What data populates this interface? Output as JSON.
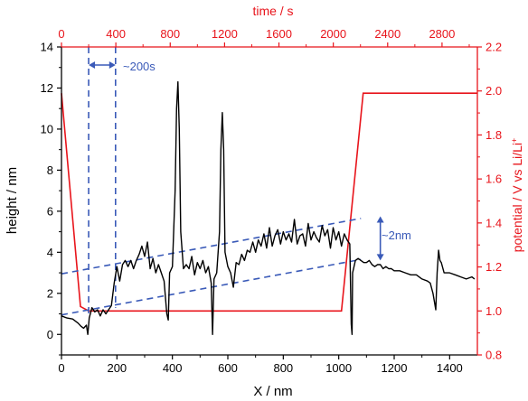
{
  "colors": {
    "height": "#000000",
    "potential": "#e8141b",
    "annotation": "#3a5ab8"
  },
  "chart_data": {
    "type": "line",
    "xlabel": "X / nm",
    "ylabel": "height / nm",
    "x2label": "time / s",
    "y2label": "potential / V vs Li/Li",
    "y2label_sup": "+",
    "xlim": [
      0,
      1500
    ],
    "ylim": [
      -1,
      14
    ],
    "x2lim": [
      0,
      3060
    ],
    "y2lim": [
      0.8,
      2.2
    ],
    "x_ticks": [
      0,
      200,
      400,
      600,
      800,
      1000,
      1200,
      1400
    ],
    "y_ticks": [
      0,
      2,
      4,
      6,
      8,
      10,
      12,
      14
    ],
    "x2_ticks": [
      0,
      400,
      800,
      1200,
      1600,
      2000,
      2400,
      2800
    ],
    "y2_ticks": [
      0.8,
      1.0,
      1.2,
      1.4,
      1.6,
      1.8,
      2.0,
      2.2
    ],
    "grid": false,
    "series": [
      {
        "axis": "left-bottom",
        "points": [
          [
            0,
            0.9
          ],
          [
            20,
            0.8
          ],
          [
            40,
            0.75
          ],
          [
            60,
            0.55
          ],
          [
            70,
            0.4
          ],
          [
            80,
            0.3
          ],
          [
            90,
            0.45
          ],
          [
            95,
            0.0
          ],
          [
            100,
            0.8
          ],
          [
            110,
            1.3
          ],
          [
            120,
            1.1
          ],
          [
            130,
            1.2
          ],
          [
            140,
            0.9
          ],
          [
            150,
            1.2
          ],
          [
            160,
            1.0
          ],
          [
            170,
            1.2
          ],
          [
            180,
            1.4
          ],
          [
            190,
            2.5
          ],
          [
            200,
            3.3
          ],
          [
            210,
            2.6
          ],
          [
            220,
            3.4
          ],
          [
            230,
            3.6
          ],
          [
            240,
            3.3
          ],
          [
            250,
            3.6
          ],
          [
            260,
            3.2
          ],
          [
            270,
            3.6
          ],
          [
            280,
            3.9
          ],
          [
            290,
            4.3
          ],
          [
            300,
            3.8
          ],
          [
            310,
            4.5
          ],
          [
            320,
            3.2
          ],
          [
            330,
            3.7
          ],
          [
            340,
            3.0
          ],
          [
            350,
            3.4
          ],
          [
            360,
            3.0
          ],
          [
            370,
            2.6
          ],
          [
            380,
            1.0
          ],
          [
            385,
            0.7
          ],
          [
            390,
            3.0
          ],
          [
            400,
            3.3
          ],
          [
            410,
            7.0
          ],
          [
            415,
            11.0
          ],
          [
            420,
            12.3
          ],
          [
            425,
            10.0
          ],
          [
            430,
            5.0
          ],
          [
            440,
            3.2
          ],
          [
            450,
            3.4
          ],
          [
            460,
            3.2
          ],
          [
            470,
            3.8
          ],
          [
            480,
            2.9
          ],
          [
            490,
            3.5
          ],
          [
            500,
            3.2
          ],
          [
            510,
            3.6
          ],
          [
            520,
            3.0
          ],
          [
            530,
            3.3
          ],
          [
            540,
            2.5
          ],
          [
            545,
            0.0
          ],
          [
            550,
            2.7
          ],
          [
            560,
            3.0
          ],
          [
            570,
            5.0
          ],
          [
            575,
            9.0
          ],
          [
            580,
            10.8
          ],
          [
            585,
            9.0
          ],
          [
            590,
            4.0
          ],
          [
            600,
            3.3
          ],
          [
            610,
            3.0
          ],
          [
            620,
            2.3
          ],
          [
            630,
            3.5
          ],
          [
            640,
            3.4
          ],
          [
            650,
            3.9
          ],
          [
            660,
            3.6
          ],
          [
            670,
            4.1
          ],
          [
            680,
            4.0
          ],
          [
            690,
            4.5
          ],
          [
            700,
            4.0
          ],
          [
            710,
            4.6
          ],
          [
            720,
            4.3
          ],
          [
            730,
            4.9
          ],
          [
            740,
            4.2
          ],
          [
            750,
            5.2
          ],
          [
            760,
            4.3
          ],
          [
            770,
            4.8
          ],
          [
            780,
            5.1
          ],
          [
            790,
            4.4
          ],
          [
            800,
            5.0
          ],
          [
            810,
            4.6
          ],
          [
            820,
            4.9
          ],
          [
            830,
            4.5
          ],
          [
            840,
            5.6
          ],
          [
            850,
            4.4
          ],
          [
            860,
            4.8
          ],
          [
            870,
            4.9
          ],
          [
            880,
            4.3
          ],
          [
            890,
            5.4
          ],
          [
            900,
            4.6
          ],
          [
            910,
            5.0
          ],
          [
            920,
            4.7
          ],
          [
            930,
            4.5
          ],
          [
            940,
            5.3
          ],
          [
            950,
            4.8
          ],
          [
            960,
            5.1
          ],
          [
            970,
            4.2
          ],
          [
            980,
            5.2
          ],
          [
            990,
            4.6
          ],
          [
            1000,
            5.0
          ],
          [
            1010,
            4.3
          ],
          [
            1020,
            4.9
          ],
          [
            1030,
            4.6
          ],
          [
            1040,
            4.4
          ],
          [
            1045,
            0.5
          ],
          [
            1048,
            0.0
          ],
          [
            1050,
            3.0
          ],
          [
            1060,
            3.6
          ],
          [
            1070,
            3.7
          ],
          [
            1080,
            3.6
          ],
          [
            1090,
            3.5
          ],
          [
            1100,
            3.5
          ],
          [
            1110,
            3.6
          ],
          [
            1120,
            3.4
          ],
          [
            1130,
            3.3
          ],
          [
            1140,
            3.4
          ],
          [
            1150,
            3.4
          ],
          [
            1160,
            3.2
          ],
          [
            1170,
            3.3
          ],
          [
            1180,
            3.2
          ],
          [
            1190,
            3.2
          ],
          [
            1200,
            3.1
          ],
          [
            1220,
            3.1
          ],
          [
            1240,
            3.0
          ],
          [
            1260,
            2.9
          ],
          [
            1280,
            2.9
          ],
          [
            1300,
            2.7
          ],
          [
            1320,
            2.6
          ],
          [
            1330,
            2.5
          ],
          [
            1340,
            2.0
          ],
          [
            1350,
            1.2
          ],
          [
            1355,
            3.0
          ],
          [
            1360,
            4.1
          ],
          [
            1365,
            3.6
          ],
          [
            1370,
            3.5
          ],
          [
            1380,
            3.0
          ],
          [
            1390,
            3.0
          ],
          [
            1400,
            3.0
          ],
          [
            1420,
            2.9
          ],
          [
            1440,
            2.8
          ],
          [
            1460,
            2.7
          ],
          [
            1480,
            2.8
          ],
          [
            1490,
            2.7
          ]
        ]
      },
      {
        "axis": "right-top",
        "points": [
          [
            0,
            1.99
          ],
          [
            140,
            1.02
          ],
          [
            200,
            1.0
          ],
          [
            2060,
            1.0
          ],
          [
            2220,
            1.99
          ],
          [
            3060,
            1.99
          ]
        ]
      }
    ],
    "annotations": [
      {
        "text": "~200s"
      },
      {
        "text": "~2nm"
      }
    ]
  }
}
